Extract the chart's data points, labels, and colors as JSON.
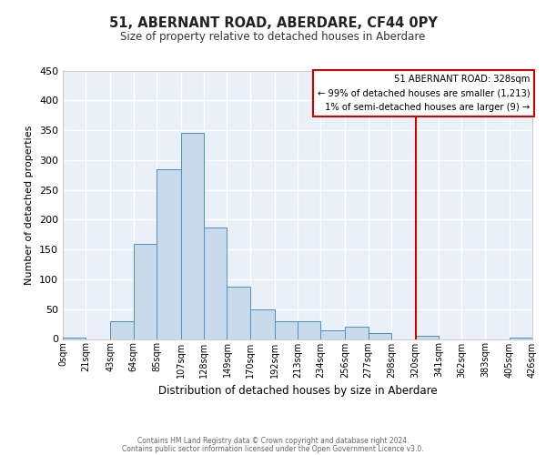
{
  "title": "51, ABERNANT ROAD, ABERDARE, CF44 0PY",
  "subtitle": "Size of property relative to detached houses in Aberdare",
  "xlabel": "Distribution of detached houses by size in Aberdare",
  "ylabel": "Number of detached properties",
  "bin_edges": [
    0,
    21,
    43,
    64,
    85,
    107,
    128,
    149,
    170,
    192,
    213,
    234,
    256,
    277,
    298,
    320,
    341,
    362,
    383,
    405,
    426
  ],
  "bin_labels": [
    "0sqm",
    "21sqm",
    "43sqm",
    "64sqm",
    "85sqm",
    "107sqm",
    "128sqm",
    "149sqm",
    "170sqm",
    "192sqm",
    "213sqm",
    "234sqm",
    "256sqm",
    "277sqm",
    "298sqm",
    "320sqm",
    "341sqm",
    "362sqm",
    "383sqm",
    "405sqm",
    "426sqm"
  ],
  "bar_heights": [
    2,
    0,
    30,
    160,
    285,
    345,
    187,
    88,
    50,
    30,
    30,
    15,
    20,
    10,
    0,
    5,
    0,
    0,
    0,
    2
  ],
  "bar_color": "#c9daea",
  "bar_edge_color": "#4a90c4",
  "ylim": [
    0,
    450
  ],
  "yticks": [
    0,
    50,
    100,
    150,
    200,
    250,
    300,
    350,
    400,
    450
  ],
  "vline_x": 320,
  "vline_color": "#cc0000",
  "annotation_title": "51 ABERNANT ROAD: 328sqm",
  "annotation_line1": "← 99% of detached houses are smaller (1,213)",
  "annotation_line2": "1% of semi-detached houses are larger (9) →",
  "annotation_box_color": "#cc0000",
  "footer_line1": "Contains HM Land Registry data © Crown copyright and database right 2024.",
  "footer_line2": "Contains public sector information licensed under the Open Government Licence v3.0.",
  "background_color": "#eaf0f8",
  "grid_color": "#ffffff"
}
